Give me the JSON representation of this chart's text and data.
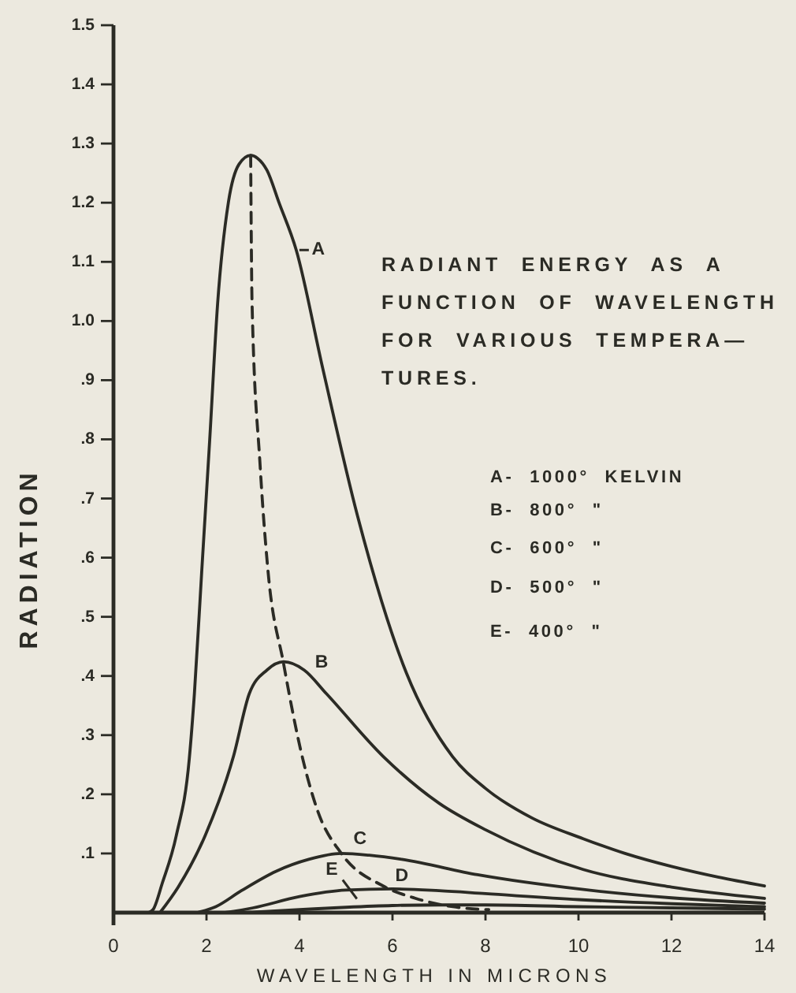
{
  "chart_data": {
    "type": "line",
    "title": "RADIANT ENERGY AS A\nFUNCTION OF WAVELENGTH\nFOR VARIOUS TEMPERA—\nTURES.",
    "xlabel": "WAVELENGTH IN MICRONS",
    "ylabel": "RADIATION",
    "xlim": [
      0,
      14
    ],
    "xticks": [
      0,
      2,
      4,
      6,
      8,
      10,
      12,
      14
    ],
    "ylim": [
      0,
      1.5
    ],
    "yticks": [
      {
        "value": 0.1,
        "label": ".1"
      },
      {
        "value": 0.2,
        "label": ".2"
      },
      {
        "value": 0.3,
        "label": ".3"
      },
      {
        "value": 0.4,
        "label": ".4"
      },
      {
        "value": 0.5,
        "label": ".5"
      },
      {
        "value": 0.6,
        "label": ".6"
      },
      {
        "value": 0.7,
        "label": ".7"
      },
      {
        "value": 0.8,
        "label": ".8"
      },
      {
        "value": 0.9,
        "label": ".9"
      },
      {
        "value": 1,
        "label": "1.0"
      },
      1.1,
      1.2,
      1.3,
      1.4,
      1.5
    ],
    "line_style": "solid",
    "series": [
      {
        "color": "#2b2b25",
        "x": [
          0.75,
          0.85,
          1.05,
          1.35,
          1.63,
          1.74,
          1.9,
          2.07,
          2.24,
          2.47,
          2.7,
          2.95,
          3.1,
          3.3,
          3.56,
          3.93,
          4.5,
          5.25,
          6.3,
          7.29,
          8,
          9,
          10.1,
          11,
          12,
          13,
          14
        ],
        "values": [
          0,
          0.005,
          0.05,
          0.13,
          0.26,
          0.37,
          0.58,
          0.8,
          1.03,
          1.2,
          1.265,
          1.28,
          1.275,
          1.255,
          1.2,
          1.12,
          0.92,
          0.67,
          0.405,
          0.264,
          0.21,
          0.16,
          0.125,
          0.1,
          0.078,
          0.06,
          0.045
        ]
      },
      {
        "color": "#2b2b25",
        "x": [
          1,
          1.39,
          1.97,
          2.58,
          2.92,
          3.3,
          3.66,
          4.1,
          4.58,
          5.8,
          7,
          8,
          10.1,
          12,
          14
        ],
        "values": [
          0,
          0.043,
          0.13,
          0.264,
          0.37,
          0.41,
          0.424,
          0.41,
          0.37,
          0.264,
          0.185,
          0.14,
          0.073,
          0.043,
          0.024
        ]
      },
      {
        "color": "#2b2b25",
        "x": [
          1.8,
          2.2,
          2.75,
          3.5,
          4.2,
          4.9,
          5.5,
          6.2,
          7.83,
          10,
          12,
          14
        ],
        "values": [
          0,
          0.01,
          0.037,
          0.07,
          0.09,
          0.1,
          0.097,
          0.09,
          0.064,
          0.04,
          0.025,
          0.016
        ]
      },
      {
        "color": "#2b2b25",
        "x": [
          2.4,
          3,
          4,
          5,
          6,
          7,
          8,
          10,
          12,
          14
        ],
        "values": [
          0,
          0.008,
          0.027,
          0.038,
          0.04,
          0.037,
          0.032,
          0.022,
          0.015,
          0.01
        ]
      },
      {
        "color": "#2b2b25",
        "x": [
          2.8,
          4,
          5,
          6,
          7,
          8,
          10,
          12,
          14
        ],
        "values": [
          0,
          0.005,
          0.009,
          0.012,
          0.013,
          0.013,
          0.01,
          0.008,
          0.006
        ]
      },
      {
        "color": "#2b2b25",
        "line_style": "dashed",
        "x": [
          2.95,
          2.98,
          3.15,
          3.32,
          3.66,
          4.07,
          4.4,
          4.9,
          5.8,
          6.5,
          7.3,
          8.07
        ],
        "values": [
          1.28,
          1.03,
          0.76,
          0.58,
          0.42,
          0.26,
          0.17,
          0.1,
          0.045,
          0.024,
          0.01,
          0.005
        ]
      }
    ],
    "annotations": [
      {
        "text": "A",
        "x": 3.93,
        "y": 1.12
      },
      {
        "text": "B",
        "x": 3.66,
        "y": 0.42
      },
      {
        "text": "C",
        "x": 5.3,
        "y": 0.1
      },
      {
        "text": "D",
        "x": 6.3,
        "y": 0.04
      },
      {
        "text": "E",
        "x": 5.2,
        "y": 0.01
      },
      "A- 1000° KELVIN",
      "B- 800° \"",
      "C- 600° \"",
      "D- 500° \"",
      "E- 400° \""
    ]
  }
}
